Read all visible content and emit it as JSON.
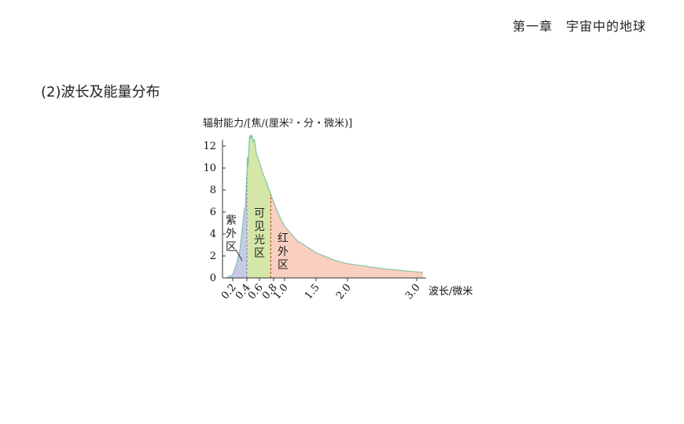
{
  "header": {
    "chapter": "第一章　宇宙中的地球"
  },
  "section": {
    "title": "(2)波长及能量分布"
  },
  "chart_data": {
    "type": "area",
    "ylabel": "辐射能力/[焦/(厘米²・分・微米)]",
    "xlabel": "波长/微米",
    "xlim": [
      0.15,
      3.1
    ],
    "ylim": [
      0,
      13
    ],
    "yticks": [
      0,
      2,
      4,
      6,
      8,
      10,
      12
    ],
    "xticks": [
      "0.2",
      "0.4",
      "0.6",
      "0.8",
      "1.0",
      "1.5",
      "2.0",
      "3.0"
    ],
    "boundaries": [
      0.4,
      0.76
    ],
    "regions": [
      {
        "name": "紫外区",
        "chars": [
          "紫",
          "外",
          "区"
        ],
        "color": "#c5cbe6",
        "range": [
          0.15,
          0.4
        ]
      },
      {
        "name": "可见光区",
        "chars": [
          "可",
          "见",
          "光",
          "区"
        ],
        "color": "#d6e6a8",
        "range": [
          0.4,
          0.76
        ]
      },
      {
        "name": "红外区",
        "chars": [
          "红",
          "外",
          "区"
        ],
        "color": "#f9cfbf",
        "range": [
          0.76,
          3.1
        ]
      }
    ],
    "curve_color": "#6fbf9a",
    "x": [
      0.15,
      0.2,
      0.25,
      0.3,
      0.33,
      0.36,
      0.38,
      0.4,
      0.41,
      0.42,
      0.44,
      0.45,
      0.46,
      0.48,
      0.5,
      0.52,
      0.55,
      0.6,
      0.65,
      0.7,
      0.76,
      0.8,
      0.9,
      1.0,
      1.2,
      1.5,
      1.8,
      2.0,
      2.5,
      3.0,
      3.1
    ],
    "y": [
      0,
      0.3,
      1.2,
      2.5,
      4.2,
      6.0,
      6.6,
      9.5,
      11.0,
      10.2,
      12.8,
      13.0,
      12.7,
      13.0,
      12.4,
      12.6,
      11.4,
      10.5,
      9.5,
      8.7,
      7.6,
      6.9,
      5.7,
      4.7,
      3.4,
      2.3,
      1.6,
      1.3,
      0.85,
      0.55,
      0.5
    ]
  }
}
